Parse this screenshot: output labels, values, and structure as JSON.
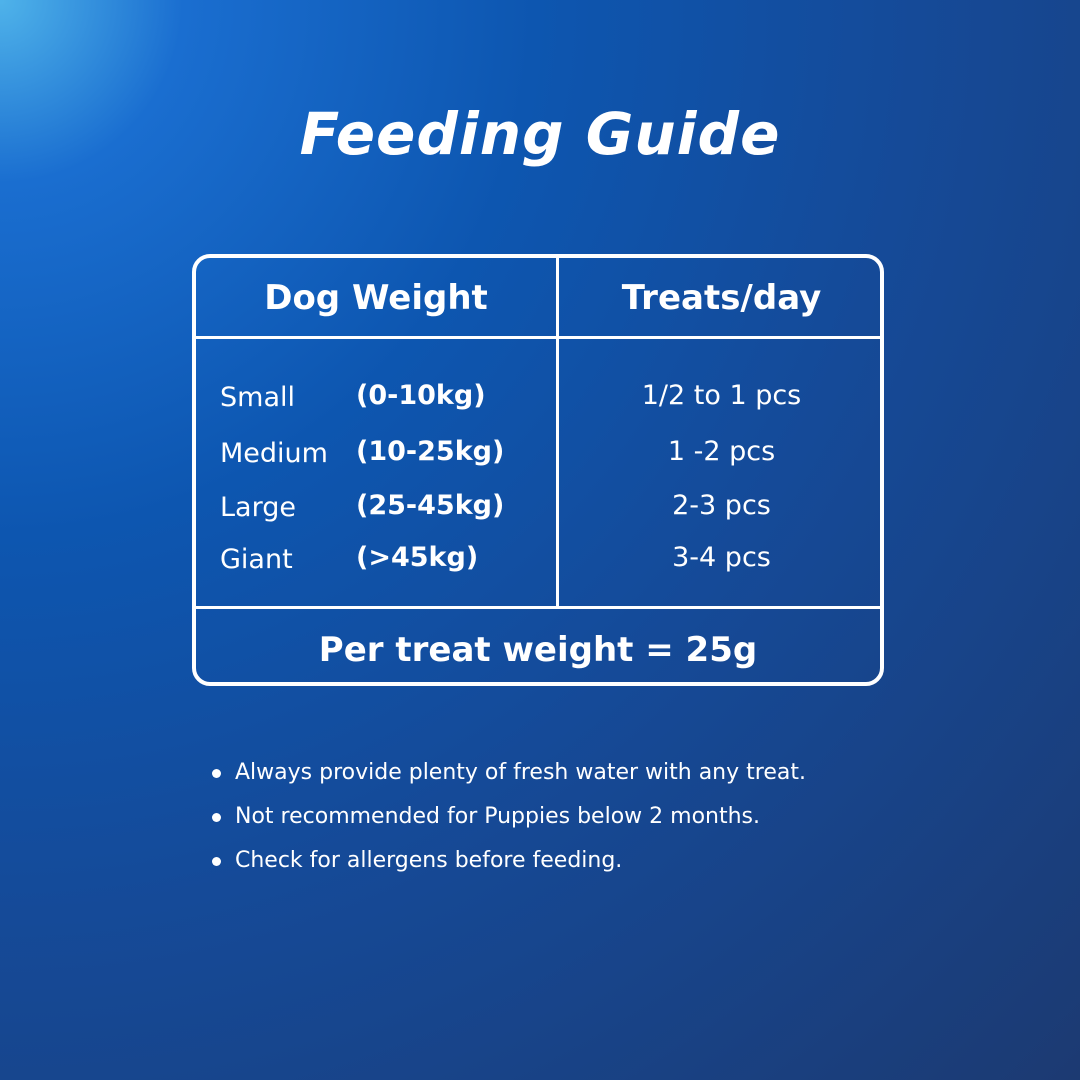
{
  "title": "Feeding Guide",
  "table": {
    "headers": [
      "Dog Weight",
      "Treats/day"
    ],
    "rows": [
      [
        "Small",
        "(0-10kg)",
        "1/2 to 1  pcs"
      ],
      [
        "Medium",
        "(10-25kg)",
        "1 -2 pcs"
      ],
      [
        "Large",
        "(25-45kg)",
        "2-3 pcs"
      ],
      [
        "Giant",
        "(>45kg)",
        "3-4 pcs"
      ]
    ],
    "footer": "Per treat weight = 25g"
  },
  "notes": [
    "Always provide plenty of fresh water with any treat.",
    "Not recommended for Puppies below 2 months.",
    "Check for allergens before feeding."
  ]
}
